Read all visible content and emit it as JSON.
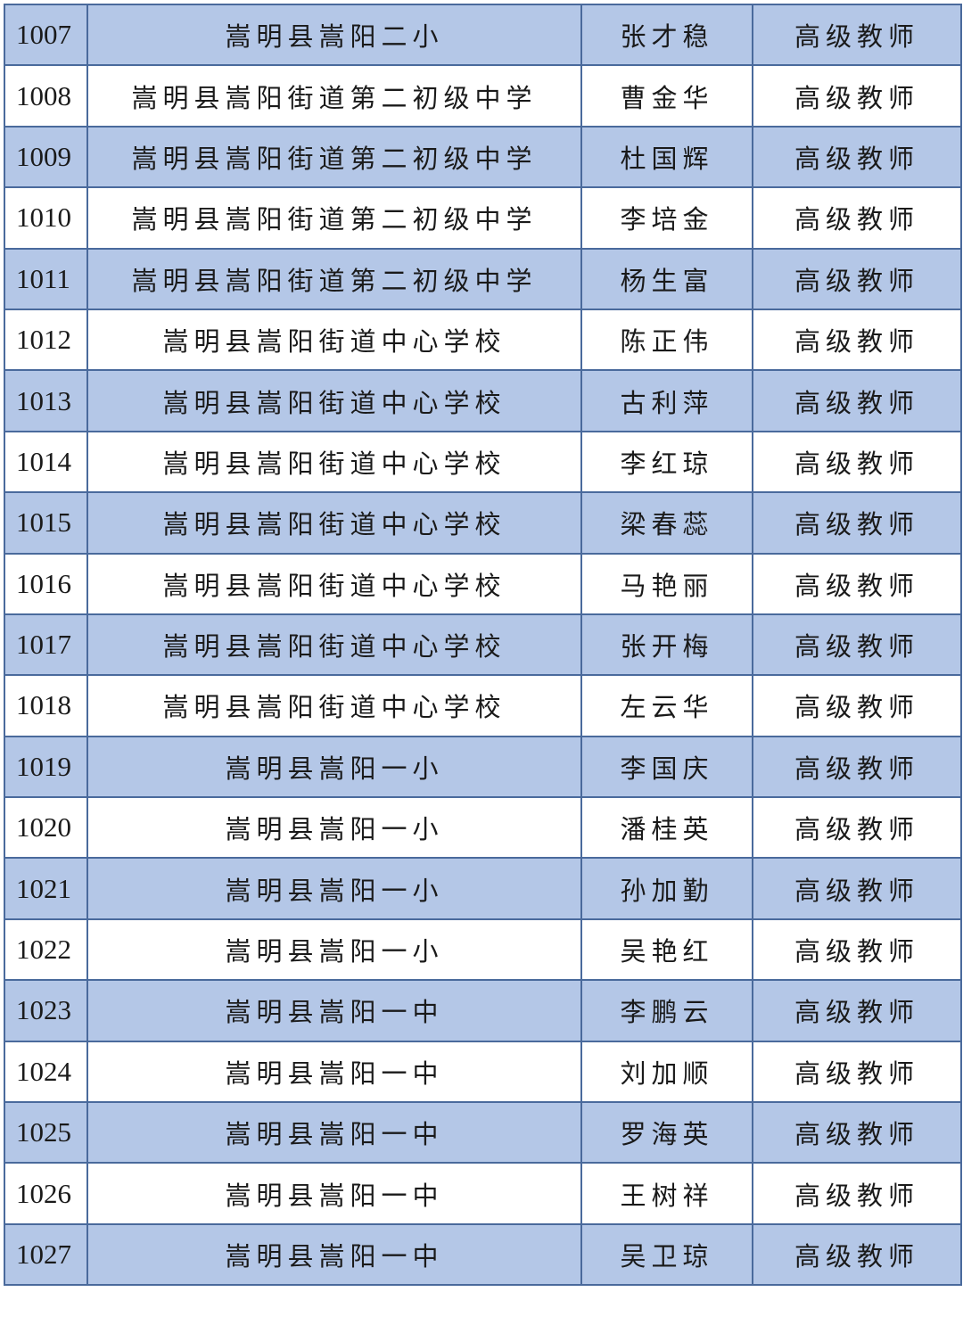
{
  "table": {
    "rows": [
      [
        "1007",
        "嵩明县嵩阳二小",
        "张才稳",
        "高级教师"
      ],
      [
        "1008",
        "嵩明县嵩阳街道第二初级中学",
        "曹金华",
        "高级教师"
      ],
      [
        "1009",
        "嵩明县嵩阳街道第二初级中学",
        "杜国辉",
        "高级教师"
      ],
      [
        "1010",
        "嵩明县嵩阳街道第二初级中学",
        "李培金",
        "高级教师"
      ],
      [
        "1011",
        "嵩明县嵩阳街道第二初级中学",
        "杨生富",
        "高级教师"
      ],
      [
        "1012",
        "嵩明县嵩阳街道中心学校",
        "陈正伟",
        "高级教师"
      ],
      [
        "1013",
        "嵩明县嵩阳街道中心学校",
        "古利萍",
        "高级教师"
      ],
      [
        "1014",
        "嵩明县嵩阳街道中心学校",
        "李红琼",
        "高级教师"
      ],
      [
        "1015",
        "嵩明县嵩阳街道中心学校",
        "梁春蕊",
        "高级教师"
      ],
      [
        "1016",
        "嵩明县嵩阳街道中心学校",
        "马艳丽",
        "高级教师"
      ],
      [
        "1017",
        "嵩明县嵩阳街道中心学校",
        "张开梅",
        "高级教师"
      ],
      [
        "1018",
        "嵩明县嵩阳街道中心学校",
        "左云华",
        "高级教师"
      ],
      [
        "1019",
        "嵩明县嵩阳一小",
        "李国庆",
        "高级教师"
      ],
      [
        "1020",
        "嵩明县嵩阳一小",
        "潘桂英",
        "高级教师"
      ],
      [
        "1021",
        "嵩明县嵩阳一小",
        "孙加勤",
        "高级教师"
      ],
      [
        "1022",
        "嵩明县嵩阳一小",
        "吴艳红",
        "高级教师"
      ],
      [
        "1023",
        "嵩明县嵩阳一中",
        "李鹏云",
        "高级教师"
      ],
      [
        "1024",
        "嵩明县嵩阳一中",
        "刘加顺",
        "高级教师"
      ],
      [
        "1025",
        "嵩明县嵩阳一中",
        "罗海英",
        "高级教师"
      ],
      [
        "1026",
        "嵩明县嵩阳一中",
        "王树祥",
        "高级教师"
      ],
      [
        "1027",
        "嵩明县嵩阳一中",
        "吴卫琼",
        "高级教师"
      ]
    ]
  }
}
